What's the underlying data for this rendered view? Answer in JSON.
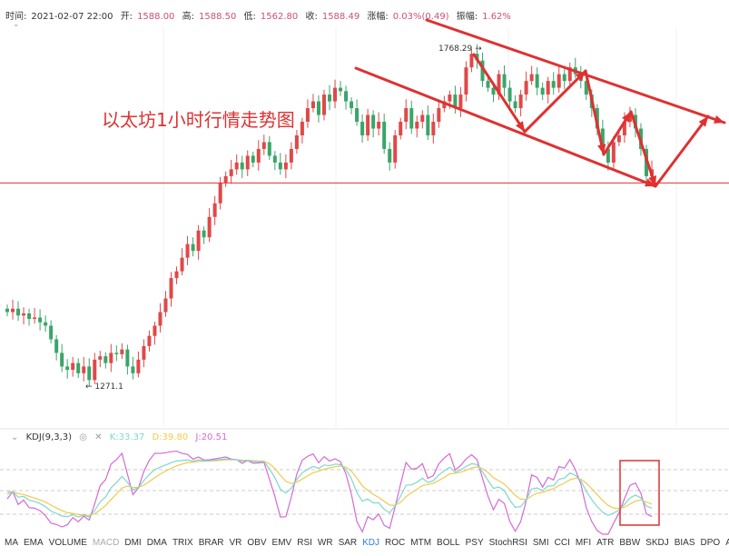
{
  "header": {
    "time_label": "时间:",
    "time": "2021-02-07 22:00",
    "open_label": "开:",
    "open": "1588.00",
    "high_label": "高:",
    "high": "1588.50",
    "low_label": "低:",
    "low": "1562.80",
    "close_label": "收:",
    "close": "1588.49",
    "change_label": "涨幅:",
    "change": "0.03%(0.49)",
    "amp_label": "振幅:",
    "amp": "1.62%"
  },
  "annotation_title": "以太坊1小时行情走势图",
  "max_label": "1768.29",
  "min_label": "1271.1",
  "kdj": {
    "name": "KDJ(9,3,3)",
    "k": "K:33.37",
    "d": "D:39.80",
    "j": "J:20.51",
    "k_color": "#7fd6d0",
    "d_color": "#f2c94c",
    "j_color": "#d46ad4"
  },
  "indicators": [
    "MA",
    "EMA",
    "VOLUME",
    "MACD",
    "DMI",
    "DMA",
    "TRIX",
    "BRAR",
    "VR",
    "OBV",
    "EMV",
    "RSI",
    "WR",
    "SAR",
    "KDJ",
    "ROC",
    "MTM",
    "BOLL",
    "PSY",
    "StochRSI",
    "SMI",
    "CCI",
    "MFI",
    "ATR",
    "BBW",
    "SKDJ",
    "BIAS",
    "DPO",
    "AO"
  ],
  "indicators_dim": "MACD",
  "indicators_active": "KDJ",
  "colors": {
    "up": "#e04848",
    "down": "#3aa569",
    "annotation": "#e03030"
  },
  "chart_data": {
    "type": "candlestick",
    "ylim": [
      1271.1,
      1768.29
    ],
    "support_price": 1570,
    "closes": [
      1380,
      1385,
      1375,
      1378,
      1370,
      1372,
      1365,
      1360,
      1340,
      1320,
      1300,
      1295,
      1305,
      1290,
      1300,
      1280,
      1310,
      1315,
      1305,
      1320,
      1318,
      1325,
      1300,
      1290,
      1310,
      1330,
      1345,
      1360,
      1380,
      1400,
      1430,
      1440,
      1460,
      1480,
      1470,
      1500,
      1490,
      1520,
      1540,
      1570,
      1580,
      1590,
      1600,
      1590,
      1610,
      1600,
      1620,
      1630,
      1610,
      1600,
      1590,
      1600,
      1620,
      1640,
      1660,
      1680,
      1690,
      1670,
      1700,
      1690,
      1710,
      1705,
      1690,
      1680,
      1660,
      1640,
      1670,
      1650,
      1660,
      1620,
      1600,
      1640,
      1660,
      1680,
      1650,
      1660,
      1670,
      1640,
      1660,
      1680,
      1690,
      1700,
      1680,
      1700,
      1740,
      1760,
      1750,
      1720,
      1710,
      1700,
      1730,
      1710,
      1690,
      1680,
      1700,
      1720,
      1730,
      1710,
      1700,
      1720,
      1710,
      1730,
      1720,
      1740,
      1730,
      1720,
      1700,
      1680,
      1650,
      1620,
      1600,
      1630,
      1640,
      1660,
      1670,
      1650,
      1620,
      1580,
      1590
    ]
  }
}
